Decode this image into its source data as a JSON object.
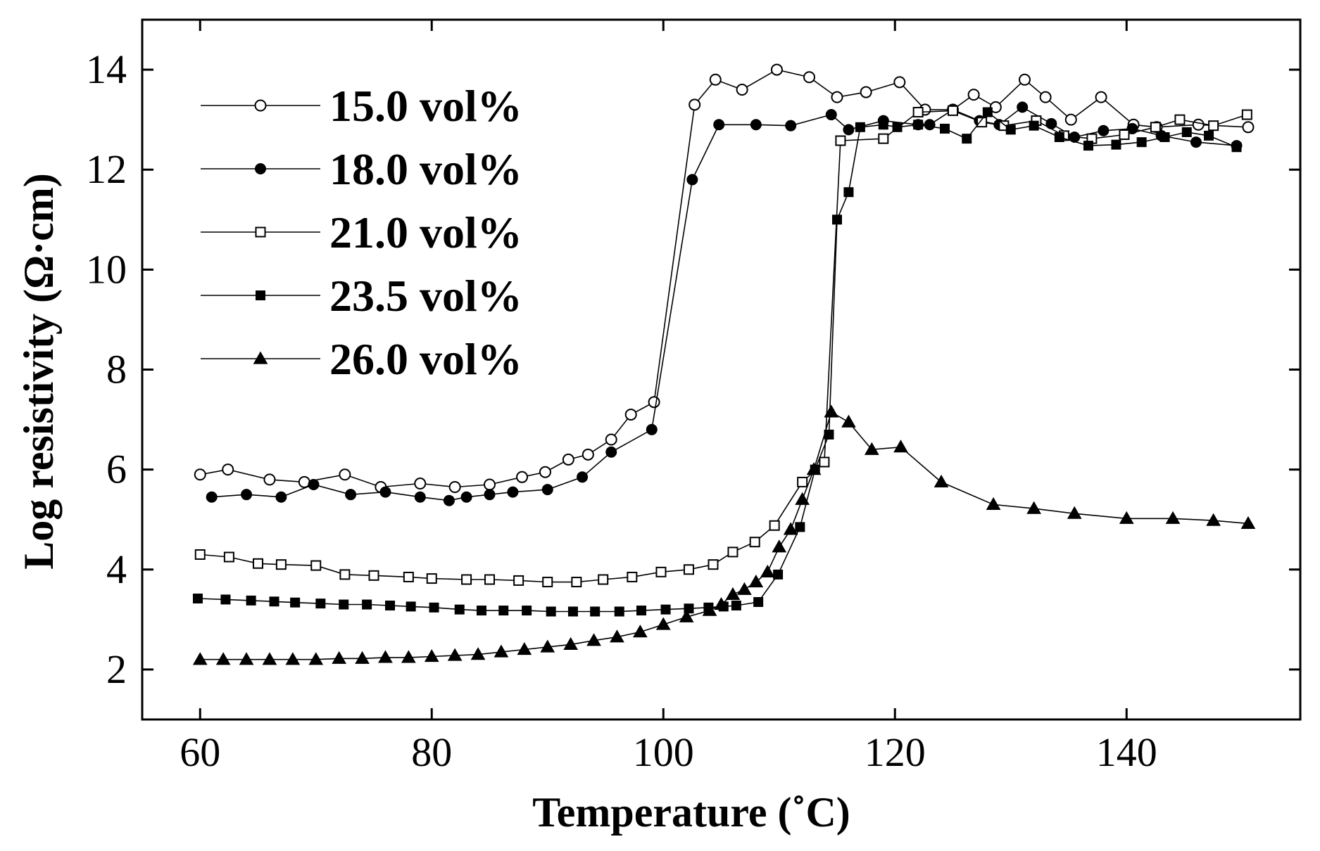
{
  "chart_data": {
    "type": "line",
    "xlabel": "Temperature (˚C)",
    "ylabel": "Log resistivity (Ω·cm)",
    "xlim": [
      55,
      155
    ],
    "ylim": [
      1,
      15
    ],
    "xticks": [
      60,
      80,
      100,
      120,
      140
    ],
    "yticks": [
      2,
      4,
      6,
      8,
      10,
      12,
      14
    ],
    "xtick_labels": [
      "60",
      "80",
      "100",
      "120",
      "140"
    ],
    "ytick_labels": [
      "2",
      "4",
      "6",
      "8",
      "10",
      "12",
      "14"
    ],
    "legend_position": "top-left",
    "series": [
      {
        "name": "15.0 vol%",
        "marker": "circle-open",
        "x": [
          60,
          62.4,
          66,
          69,
          72.5,
          75.6,
          79,
          82,
          85,
          87.8,
          89.8,
          91.8,
          93.5,
          95.5,
          97.2,
          99.2,
          102.7,
          104.5,
          106.8,
          109.8,
          112.6,
          115,
          117.5,
          120.4,
          122.6,
          125,
          126.8,
          128.7,
          131.2,
          133,
          135.2,
          137.8,
          140.6,
          142.6,
          146.2,
          150.5
        ],
        "y": [
          5.9,
          6.0,
          5.8,
          5.75,
          5.9,
          5.65,
          5.72,
          5.65,
          5.7,
          5.85,
          5.95,
          6.2,
          6.3,
          6.6,
          7.1,
          7.35,
          13.3,
          13.8,
          13.6,
          14.0,
          13.85,
          13.45,
          13.55,
          13.75,
          13.2,
          13.2,
          13.5,
          13.25,
          13.8,
          13.45,
          13.0,
          13.45,
          12.9,
          12.85,
          12.9,
          12.85
        ]
      },
      {
        "name": "18.0 vol%",
        "marker": "circle-filled",
        "x": [
          61,
          64,
          67,
          69.8,
          73,
          76,
          79,
          81.5,
          83,
          85,
          87,
          90,
          93,
          95.5,
          99,
          102.5,
          104.8,
          108,
          111,
          114.5,
          116,
          119,
          122,
          123,
          125,
          127.3,
          129,
          131,
          133.5,
          135.5,
          138,
          140.5,
          143,
          146,
          149.5
        ],
        "y": [
          5.45,
          5.5,
          5.45,
          5.7,
          5.5,
          5.55,
          5.45,
          5.38,
          5.45,
          5.5,
          5.55,
          5.6,
          5.85,
          6.35,
          6.8,
          11.8,
          12.9,
          12.9,
          12.88,
          13.1,
          12.8,
          12.98,
          12.9,
          12.9,
          13.2,
          12.98,
          12.9,
          13.25,
          12.92,
          12.65,
          12.78,
          12.82,
          12.68,
          12.55,
          12.48
        ]
      },
      {
        "name": "21.0 vol%",
        "marker": "square-open",
        "x": [
          60,
          62.5,
          65,
          67,
          70,
          72.5,
          75,
          78,
          80,
          83,
          85,
          87.5,
          90,
          92.5,
          94.8,
          97.3,
          99.8,
          102.2,
          104.3,
          106,
          107.9,
          109.6,
          112,
          113.9,
          115.3,
          119,
          122,
          125,
          127.5,
          129.4,
          132.2,
          134.6,
          137,
          139.8,
          142.5,
          144.6,
          147.5,
          150.4
        ],
        "y": [
          4.3,
          4.25,
          4.12,
          4.1,
          4.08,
          3.9,
          3.88,
          3.85,
          3.82,
          3.8,
          3.8,
          3.78,
          3.75,
          3.75,
          3.8,
          3.85,
          3.95,
          4.0,
          4.1,
          4.35,
          4.55,
          4.88,
          5.75,
          6.15,
          12.58,
          12.62,
          13.15,
          13.18,
          12.95,
          12.88,
          12.98,
          12.68,
          12.62,
          12.7,
          12.85,
          13.0,
          12.88,
          13.1
        ]
      },
      {
        "name": "23.5 vol%",
        "marker": "square-filled",
        "x": [
          59.8,
          62.2,
          64.4,
          66.4,
          68.2,
          70.4,
          72.4,
          74.4,
          76.4,
          78.2,
          80.2,
          82.4,
          84.3,
          86.2,
          88.2,
          90.3,
          92.2,
          94.1,
          96.2,
          98.1,
          100.2,
          102.2,
          103.9,
          105.2,
          106.3,
          108.2,
          109.9,
          111.8,
          113.1,
          114.3,
          115,
          116,
          117,
          119,
          120.2,
          122,
          124.3,
          126.2,
          128,
          130,
          132,
          134.2,
          136.7,
          139.1,
          141.3,
          143.3,
          145.2,
          147.1,
          149.5
        ],
        "y": [
          3.42,
          3.4,
          3.38,
          3.36,
          3.34,
          3.32,
          3.3,
          3.3,
          3.28,
          3.26,
          3.24,
          3.2,
          3.18,
          3.18,
          3.18,
          3.16,
          3.16,
          3.16,
          3.16,
          3.18,
          3.2,
          3.22,
          3.24,
          3.26,
          3.28,
          3.35,
          3.9,
          4.85,
          6.0,
          6.7,
          11.0,
          11.55,
          12.85,
          12.9,
          12.85,
          12.9,
          12.82,
          12.62,
          13.15,
          12.8,
          12.88,
          12.65,
          12.48,
          12.5,
          12.55,
          12.65,
          12.75,
          12.68,
          12.45
        ]
      },
      {
        "name": "26.0 vol%",
        "marker": "triangle-filled",
        "x": [
          60,
          62,
          64,
          66,
          68,
          70,
          72,
          74,
          76,
          78,
          80,
          82,
          84,
          86,
          88,
          90,
          92,
          94,
          96,
          98,
          100,
          102,
          104,
          105,
          106,
          107,
          108,
          109,
          110,
          111,
          112,
          113,
          114.5,
          116,
          118,
          120.5,
          124,
          128.5,
          132,
          135.5,
          140,
          144,
          147.5,
          150.5
        ],
        "y": [
          2.2,
          2.2,
          2.2,
          2.2,
          2.2,
          2.2,
          2.22,
          2.22,
          2.24,
          2.24,
          2.26,
          2.28,
          2.3,
          2.35,
          2.4,
          2.45,
          2.5,
          2.58,
          2.65,
          2.75,
          2.9,
          3.05,
          3.18,
          3.3,
          3.5,
          3.6,
          3.75,
          3.95,
          4.45,
          4.8,
          5.4,
          6.0,
          7.15,
          6.95,
          6.4,
          6.45,
          5.75,
          5.3,
          5.22,
          5.12,
          5.02,
          5.02,
          4.98,
          4.92
        ]
      }
    ]
  }
}
